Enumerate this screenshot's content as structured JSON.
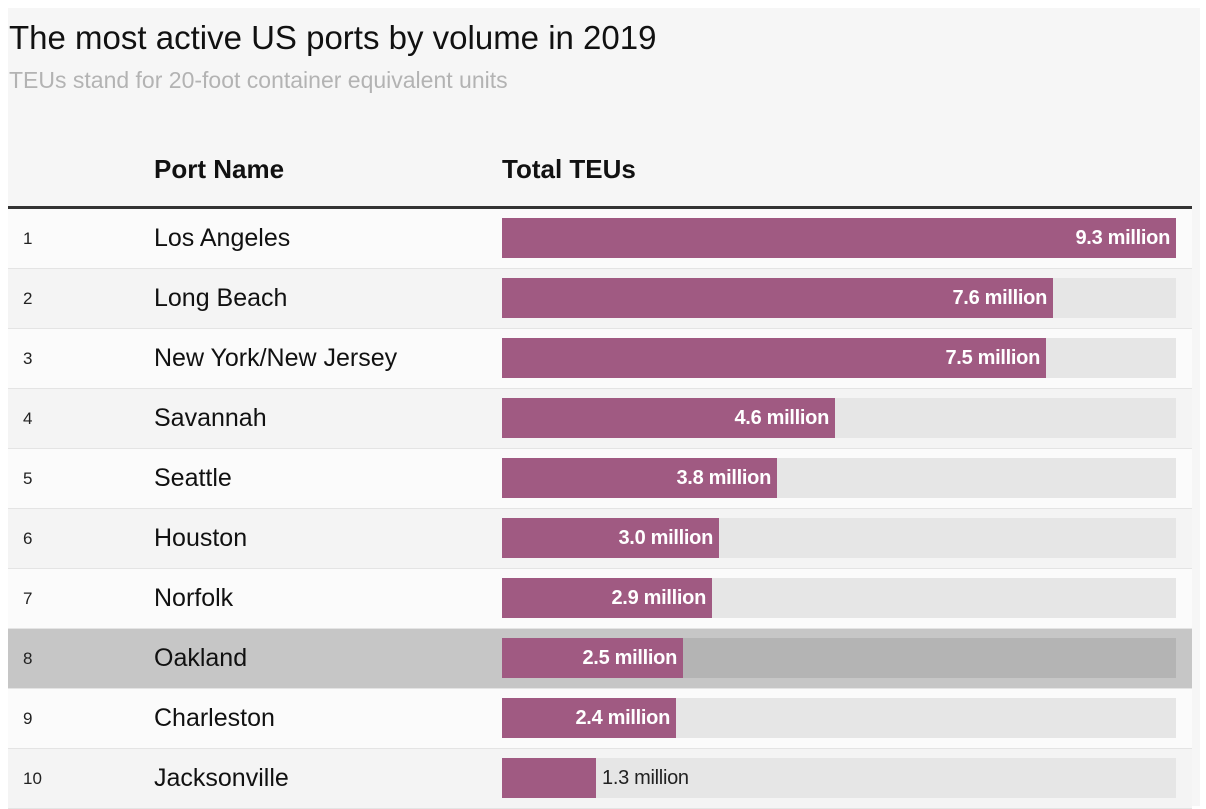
{
  "chart_data": {
    "type": "bar",
    "orientation": "horizontal",
    "title": "The most active US ports by volume in 2019",
    "subtitle": "TEUs stand for 20-foot container equivalent units",
    "columns": {
      "rank": "",
      "name": "Port Name",
      "value": "Total TEUs"
    },
    "value_unit": "million TEUs",
    "xlim": [
      0,
      9.3
    ],
    "highlighted_rank": 8,
    "rows": [
      {
        "rank": "1",
        "name": "Los Angeles",
        "value": 9.3,
        "label": "9.3 million"
      },
      {
        "rank": "2",
        "name": "Long Beach",
        "value": 7.6,
        "label": "7.6 million"
      },
      {
        "rank": "3",
        "name": "New York/New Jersey",
        "value": 7.5,
        "label": "7.5 million"
      },
      {
        "rank": "4",
        "name": "Savannah",
        "value": 4.6,
        "label": "4.6 million"
      },
      {
        "rank": "5",
        "name": "Seattle",
        "value": 3.8,
        "label": "3.8 million"
      },
      {
        "rank": "6",
        "name": "Houston",
        "value": 3.0,
        "label": "3.0 million"
      },
      {
        "rank": "7",
        "name": "Norfolk",
        "value": 2.9,
        "label": "2.9 million"
      },
      {
        "rank": "8",
        "name": "Oakland",
        "value": 2.5,
        "label": "2.5 million"
      },
      {
        "rank": "9",
        "name": "Charleston",
        "value": 2.4,
        "label": "2.4 million"
      },
      {
        "rank": "10",
        "name": "Jacksonville",
        "value": 1.3,
        "label": "1.3 million"
      }
    ]
  },
  "colors": {
    "bar": "#a05a82",
    "track": "#e6e6e6",
    "highlight_row": "#c6c6c6",
    "highlight_track": "#b4b4b4"
  }
}
